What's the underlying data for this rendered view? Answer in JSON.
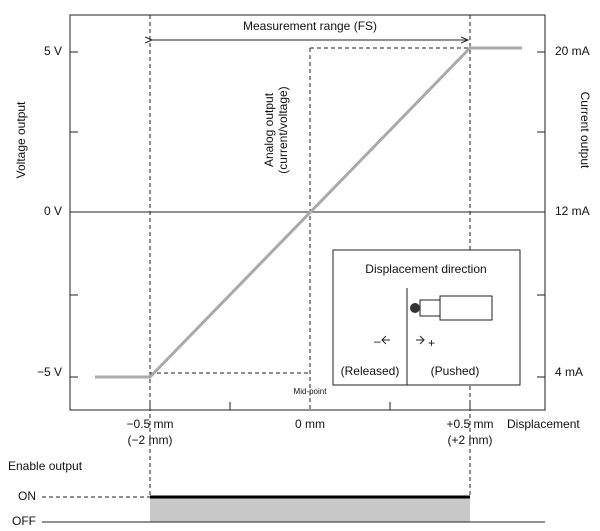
{
  "title": "Measurement range (FS)",
  "left_axis": {
    "label": "Voltage output",
    "ticks": [
      "5 V",
      "0 V",
      "−5 V"
    ]
  },
  "right_axis": {
    "label": "Current output",
    "ticks": [
      "20 mA",
      "12 mA",
      "4 mA"
    ]
  },
  "center_label": [
    "Analog output",
    "(current/voltage)"
  ],
  "mid_point": "Mid-point",
  "x_axis": {
    "label": "Displacement",
    "ticks": [
      [
        "−0.5 mm",
        "(−2 mm)"
      ],
      [
        "0 mm"
      ],
      [
        "+0.5 mm",
        "(+2 mm)"
      ]
    ]
  },
  "inset": {
    "title": "Displacement direction",
    "minus": "–",
    "plus": "+",
    "released": "(Released)",
    "pushed": "(Pushed)"
  },
  "enable": {
    "label": "Enable output",
    "on": "ON",
    "off": "OFF"
  }
}
